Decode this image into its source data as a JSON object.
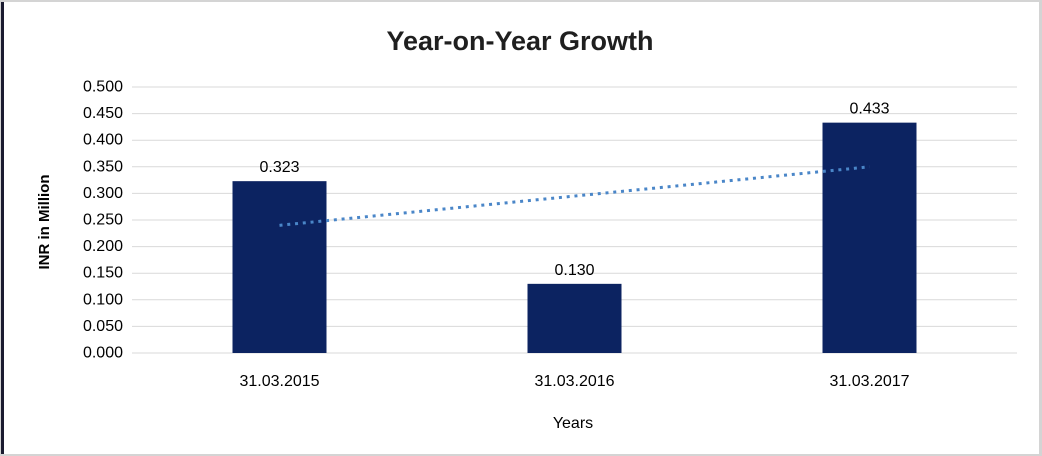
{
  "chart_data": {
    "type": "bar",
    "title": "Year-on-Year Growth",
    "xlabel": "Years",
    "ylabel": "INR in Million",
    "categories": [
      "31.03.2015",
      "31.03.2016",
      "31.03.2017"
    ],
    "values": [
      0.323,
      0.13,
      0.433
    ],
    "data_labels": [
      "0.323",
      "0.130",
      "0.433"
    ],
    "y_ticks": [
      "0.000",
      "0.050",
      "0.100",
      "0.150",
      "0.200",
      "0.250",
      "0.300",
      "0.350",
      "0.400",
      "0.450",
      "0.500"
    ],
    "ylim": [
      0,
      0.5
    ],
    "grid": "horizontal-gridlines",
    "legend_position": "none",
    "trendline": {
      "type": "linear",
      "style": "dotted",
      "start_value": 0.24,
      "end_value": 0.35
    },
    "colors": {
      "bar": "#0c2361",
      "gridline": "#d9d9d9",
      "trendline": "#4a86c8",
      "title_text": "#1f1f1f",
      "axis_text": "#000000",
      "frame_border": "#d4d4d4",
      "left_accent": "#1b1b30",
      "background": "#ffffff"
    }
  }
}
